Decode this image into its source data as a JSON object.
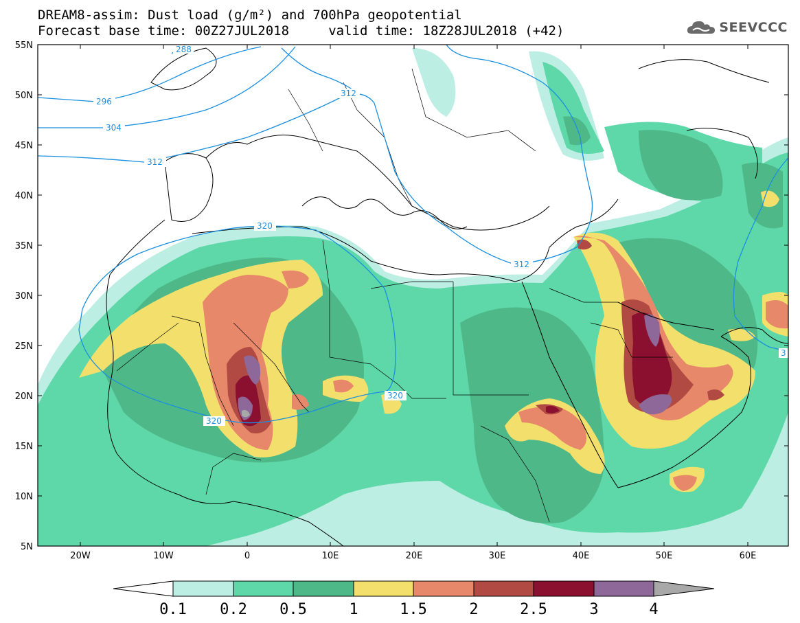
{
  "header": {
    "title_line1": "DREAM8-assim: Dust load (g/m²) and 700hPa geopotential",
    "title_line2": "Forecast base time: 00Z27JUL2018     valid time: 18Z28JUL2018 (+42)",
    "logo_text": "SEEVCCC"
  },
  "axes": {
    "lat_labels": [
      "55N",
      "50N",
      "45N",
      "40N",
      "35N",
      "30N",
      "25N",
      "20N",
      "15N",
      "10N",
      "5N"
    ],
    "lon_labels": [
      "20W",
      "10W",
      "0",
      "10E",
      "20E",
      "30E",
      "40E",
      "50E",
      "60E"
    ]
  },
  "contours": {
    "color": "#1a8fe0",
    "labels": [
      "288",
      "296",
      "304",
      "312",
      "312",
      "312",
      "320",
      "320",
      "320",
      "3"
    ]
  },
  "colorbar": {
    "labels": [
      "0.1",
      "0.2",
      "0.5",
      "1",
      "1.5",
      "2",
      "2.5",
      "3",
      "4"
    ],
    "colors": [
      "#ffffff",
      "#bdeee4",
      "#5ed8a8",
      "#4fb888",
      "#f3e06c",
      "#e8886a",
      "#b04a42",
      "#8b1030",
      "#8e6898",
      "#a8a8a8"
    ]
  },
  "dust_colors": {
    "c01": "#bdeee4",
    "c02": "#5ed8a8",
    "c05": "#4fb888",
    "c1": "#f3e06c",
    "c15": "#e8886a",
    "c2": "#b04a42",
    "c25": "#8b1030",
    "c3": "#8e6898",
    "c4": "#a8a8a8"
  }
}
